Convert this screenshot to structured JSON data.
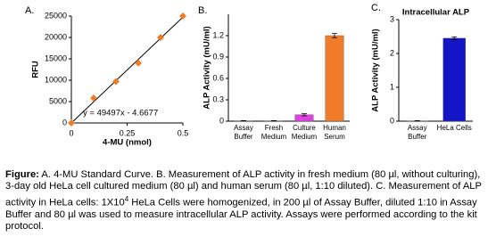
{
  "chart_data": [
    {
      "type": "scatter",
      "panel": "A.",
      "xlabel": "4-MU (nmol)",
      "ylabel": "RFU",
      "x": [
        0,
        0.1,
        0.2,
        0.3,
        0.4,
        0.5
      ],
      "values": [
        0,
        5800,
        9700,
        14000,
        20000,
        25000
      ],
      "color": "#f07b28",
      "xlim": [
        0,
        0.5
      ],
      "xticks": [
        0,
        0.25,
        0.5
      ],
      "ylim": [
        0,
        25000
      ],
      "yticks": [
        0,
        5000,
        10000,
        15000,
        20000,
        25000
      ],
      "trendline": {
        "label": "y = 49497x - 4.6677",
        "slope": 49497,
        "intercept": -4.6677
      }
    },
    {
      "type": "bar",
      "panel": "B.",
      "ylabel": "ALP Activity (mU/ml)",
      "categories": [
        [
          "Assay",
          "Buffer"
        ],
        [
          "Fresh",
          "Medium"
        ],
        [
          "Culture",
          "Medium"
        ],
        [
          "Human",
          "Serum"
        ]
      ],
      "values": [
        0.005,
        0.005,
        0.09,
        1.2
      ],
      "errors": [
        0.002,
        0.002,
        0.015,
        0.03
      ],
      "colors": [
        "#999999",
        "#999999",
        "#e040e0",
        "#f07b28"
      ],
      "ylim": [
        0,
        1.5
      ],
      "yticks": [
        0,
        0.3,
        0.6,
        0.9,
        1.2
      ]
    },
    {
      "type": "bar",
      "panel": "C.",
      "title": "Intracellular ALP",
      "ylabel": "ALP Activity (mU/ml)",
      "categories": [
        [
          "Assay",
          "Buffer"
        ],
        [
          "HeLa Cells"
        ]
      ],
      "values": [
        0.01,
        2.45
      ],
      "errors": [
        0.005,
        0.04
      ],
      "colors": [
        "#999999",
        "#1515c8"
      ],
      "ylim": [
        0,
        3
      ],
      "yticks": [
        0,
        1,
        2,
        3
      ]
    }
  ],
  "caption": {
    "label": "Figure:",
    "parts": [
      "A. 4-MU Standard Curve. B. Measurement of ALP activity in fresh medium (80 µl, without culturing), 3-day old HeLa cell cultured medium (80 µl) and human serum (80 µl, 1:10 diluted). C. Measurement of ALP activity in HeLa cells: 1X10",
      "4",
      " HeLa Cells were homogenized, in 200 µl of Assay Buffer, diluted 1:10 in Assay Buffer and 80 µl was used to measure intracellular ALP activity. Assays were performed according to the kit protocol."
    ]
  }
}
